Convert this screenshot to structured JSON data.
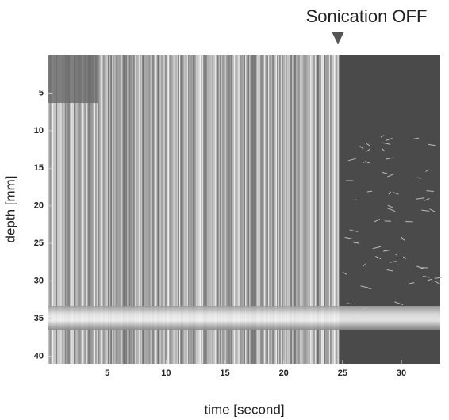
{
  "chart_data": {
    "type": "image",
    "annotation": {
      "text": "Sonication OFF",
      "x": 24.6
    },
    "xlabel": "time [second]",
    "ylabel": "depth [mm]",
    "xlim": [
      0,
      33.3
    ],
    "xticks": [
      5,
      10,
      15,
      20,
      25,
      30
    ],
    "ylim": [
      0,
      41
    ],
    "yticks": [
      5,
      10,
      15,
      20,
      25,
      30,
      35,
      40
    ]
  }
}
